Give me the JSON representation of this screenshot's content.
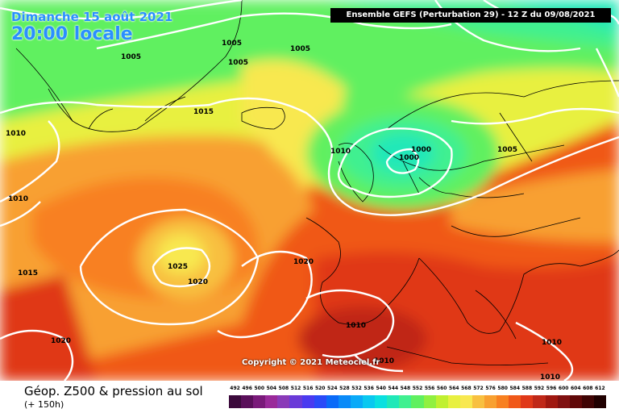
{
  "header": {
    "date": "Dimanche 15 août 2021",
    "local_time": "20:00 locale",
    "run_info": "Ensemble GEFS  (Perturbation 29)  -  12 Z du 09/08/2021"
  },
  "copyright": "Copyright © 2021 Meteociel.fr",
  "legend": {
    "title": "Géop. Z500 & pression au sol",
    "lead_time": "(+ 150h)",
    "scale": [
      "492",
      "496",
      "500",
      "504",
      "508",
      "512",
      "516",
      "520",
      "524",
      "528",
      "532",
      "536",
      "540",
      "544",
      "548",
      "552",
      "556",
      "560",
      "564",
      "568",
      "572",
      "576",
      "580",
      "584",
      "588",
      "592",
      "596",
      "600",
      "604",
      "608",
      "612"
    ],
    "scale_colors": [
      "#3c0a3c",
      "#5a0f5a",
      "#7a1a7a",
      "#9a2a9a",
      "#8a3ab8",
      "#6a3ad8",
      "#4a3af0",
      "#2a4af8",
      "#0a6af8",
      "#0a8af8",
      "#0aaaf8",
      "#0ac8f0",
      "#0ae0e0",
      "#20e8b8",
      "#40f090",
      "#60f060",
      "#90f040",
      "#c0f030",
      "#e8f040",
      "#f8e850",
      "#f8c040",
      "#f8a030",
      "#f88020",
      "#f05818",
      "#e03818",
      "#c02818",
      "#a01810",
      "#801010",
      "#600808",
      "#400404",
      "#200000"
    ]
  },
  "isobar_labels": {
    "l1005a": "1005",
    "l1005b": "1005",
    "l1005c": "1005",
    "l1005d": "1005",
    "l1005e": "1005",
    "l1010a": "1010",
    "l1010b": "1010",
    "l1010c": "1010",
    "l1010d": "1010",
    "l1010e": "1010",
    "l1010f": "1010",
    "l1015a": "1015",
    "l1015b": "1015",
    "l1000a": "1000",
    "l1000b": "1000",
    "l1020a": "1020",
    "l1020b": "1020",
    "l1020c": "1020",
    "l1025": "1025"
  }
}
